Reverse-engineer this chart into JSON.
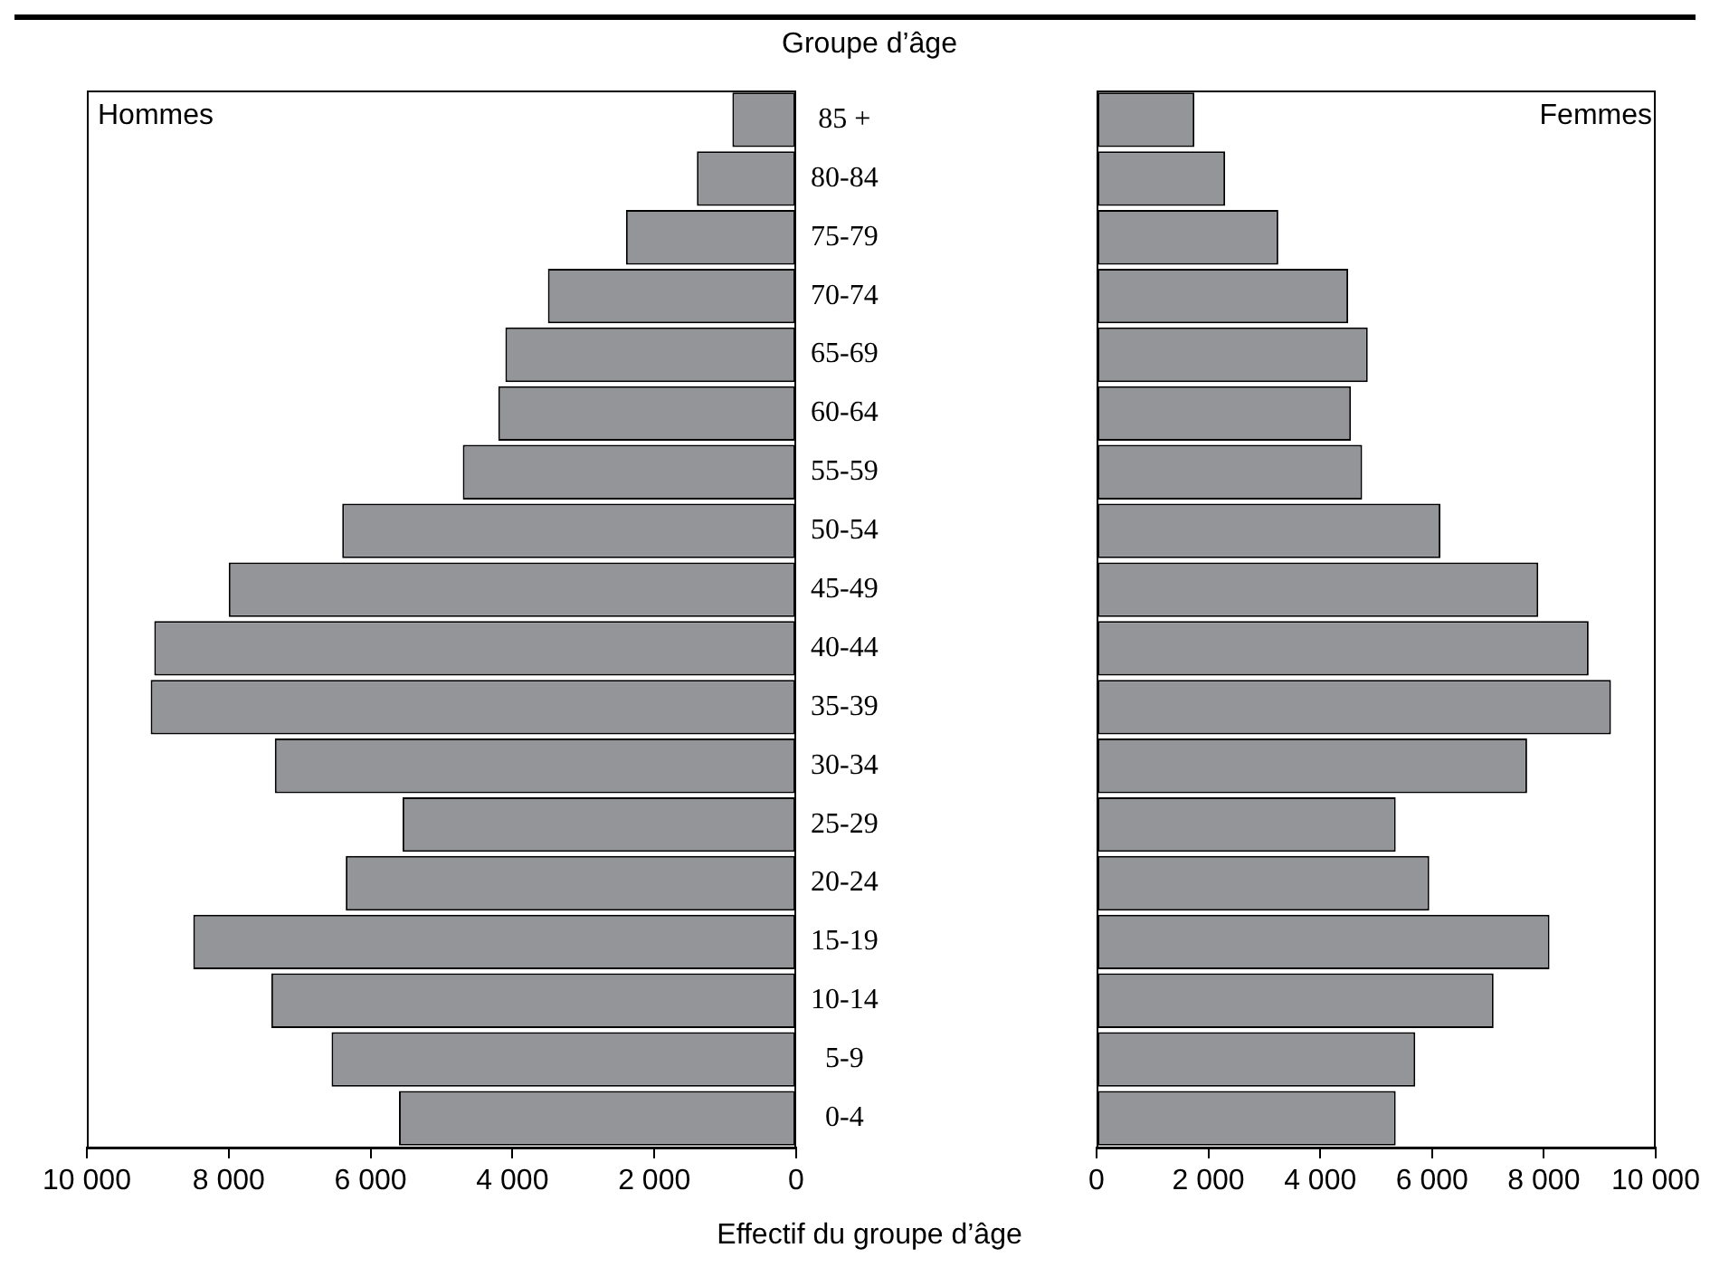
{
  "chart_data": [
    {
      "type": "bar",
      "orientation": "horizontal",
      "title": "Groupe d’âge",
      "xlabel": "Effectif du groupe d’âge",
      "categories": [
        "85 +",
        "80-84",
        "75-79",
        "70-74",
        "65-69",
        "60-64",
        "55-59",
        "50-54",
        "45-49",
        "40-44",
        "35-39",
        "30-34",
        "25-29",
        "20-24",
        "15-19",
        "10-14",
        "5-9",
        "0-4"
      ],
      "series": [
        {
          "name": "Hommes",
          "color": "#939598",
          "values": [
            900,
            1400,
            2400,
            3500,
            4100,
            4200,
            4700,
            6400,
            8000,
            9050,
            9100,
            7350,
            5550,
            6350,
            8500,
            7400,
            6550,
            5600
          ]
        }
      ],
      "xlim": [
        10000,
        0
      ],
      "xticks": [
        {
          "value": 10000,
          "label": "10 000"
        },
        {
          "value": 8000,
          "label": "8 000"
        },
        {
          "value": 6000,
          "label": "6 000"
        },
        {
          "value": 4000,
          "label": "4 000"
        },
        {
          "value": 2000,
          "label": "2 000"
        },
        0
      ]
    },
    {
      "type": "bar",
      "orientation": "horizontal",
      "tick_labels": "x",
      "categories": [
        null,
        null,
        null,
        null,
        null,
        null,
        null,
        null,
        null,
        null,
        null,
        null,
        null,
        null,
        null,
        null,
        null,
        null
      ],
      "series": [
        {
          "name": "Femmes",
          "color": "#939598",
          "values": [
            1750,
            2300,
            3250,
            4500,
            4850,
            4550,
            4750,
            6150,
            7900,
            8800,
            9200,
            7700,
            5350,
            5950,
            8100,
            7100,
            5700,
            5350
          ]
        }
      ],
      "xlim": [
        0,
        10000
      ],
      "xticks": [
        0,
        {
          "value": 2000,
          "label": "2 000"
        },
        {
          "value": 4000,
          "label": "4 000"
        },
        {
          "value": 6000,
          "label": "6 000"
        },
        {
          "value": 8000,
          "label": "8 000"
        },
        {
          "value": 10000,
          "label": "10 000"
        }
      ]
    }
  ]
}
